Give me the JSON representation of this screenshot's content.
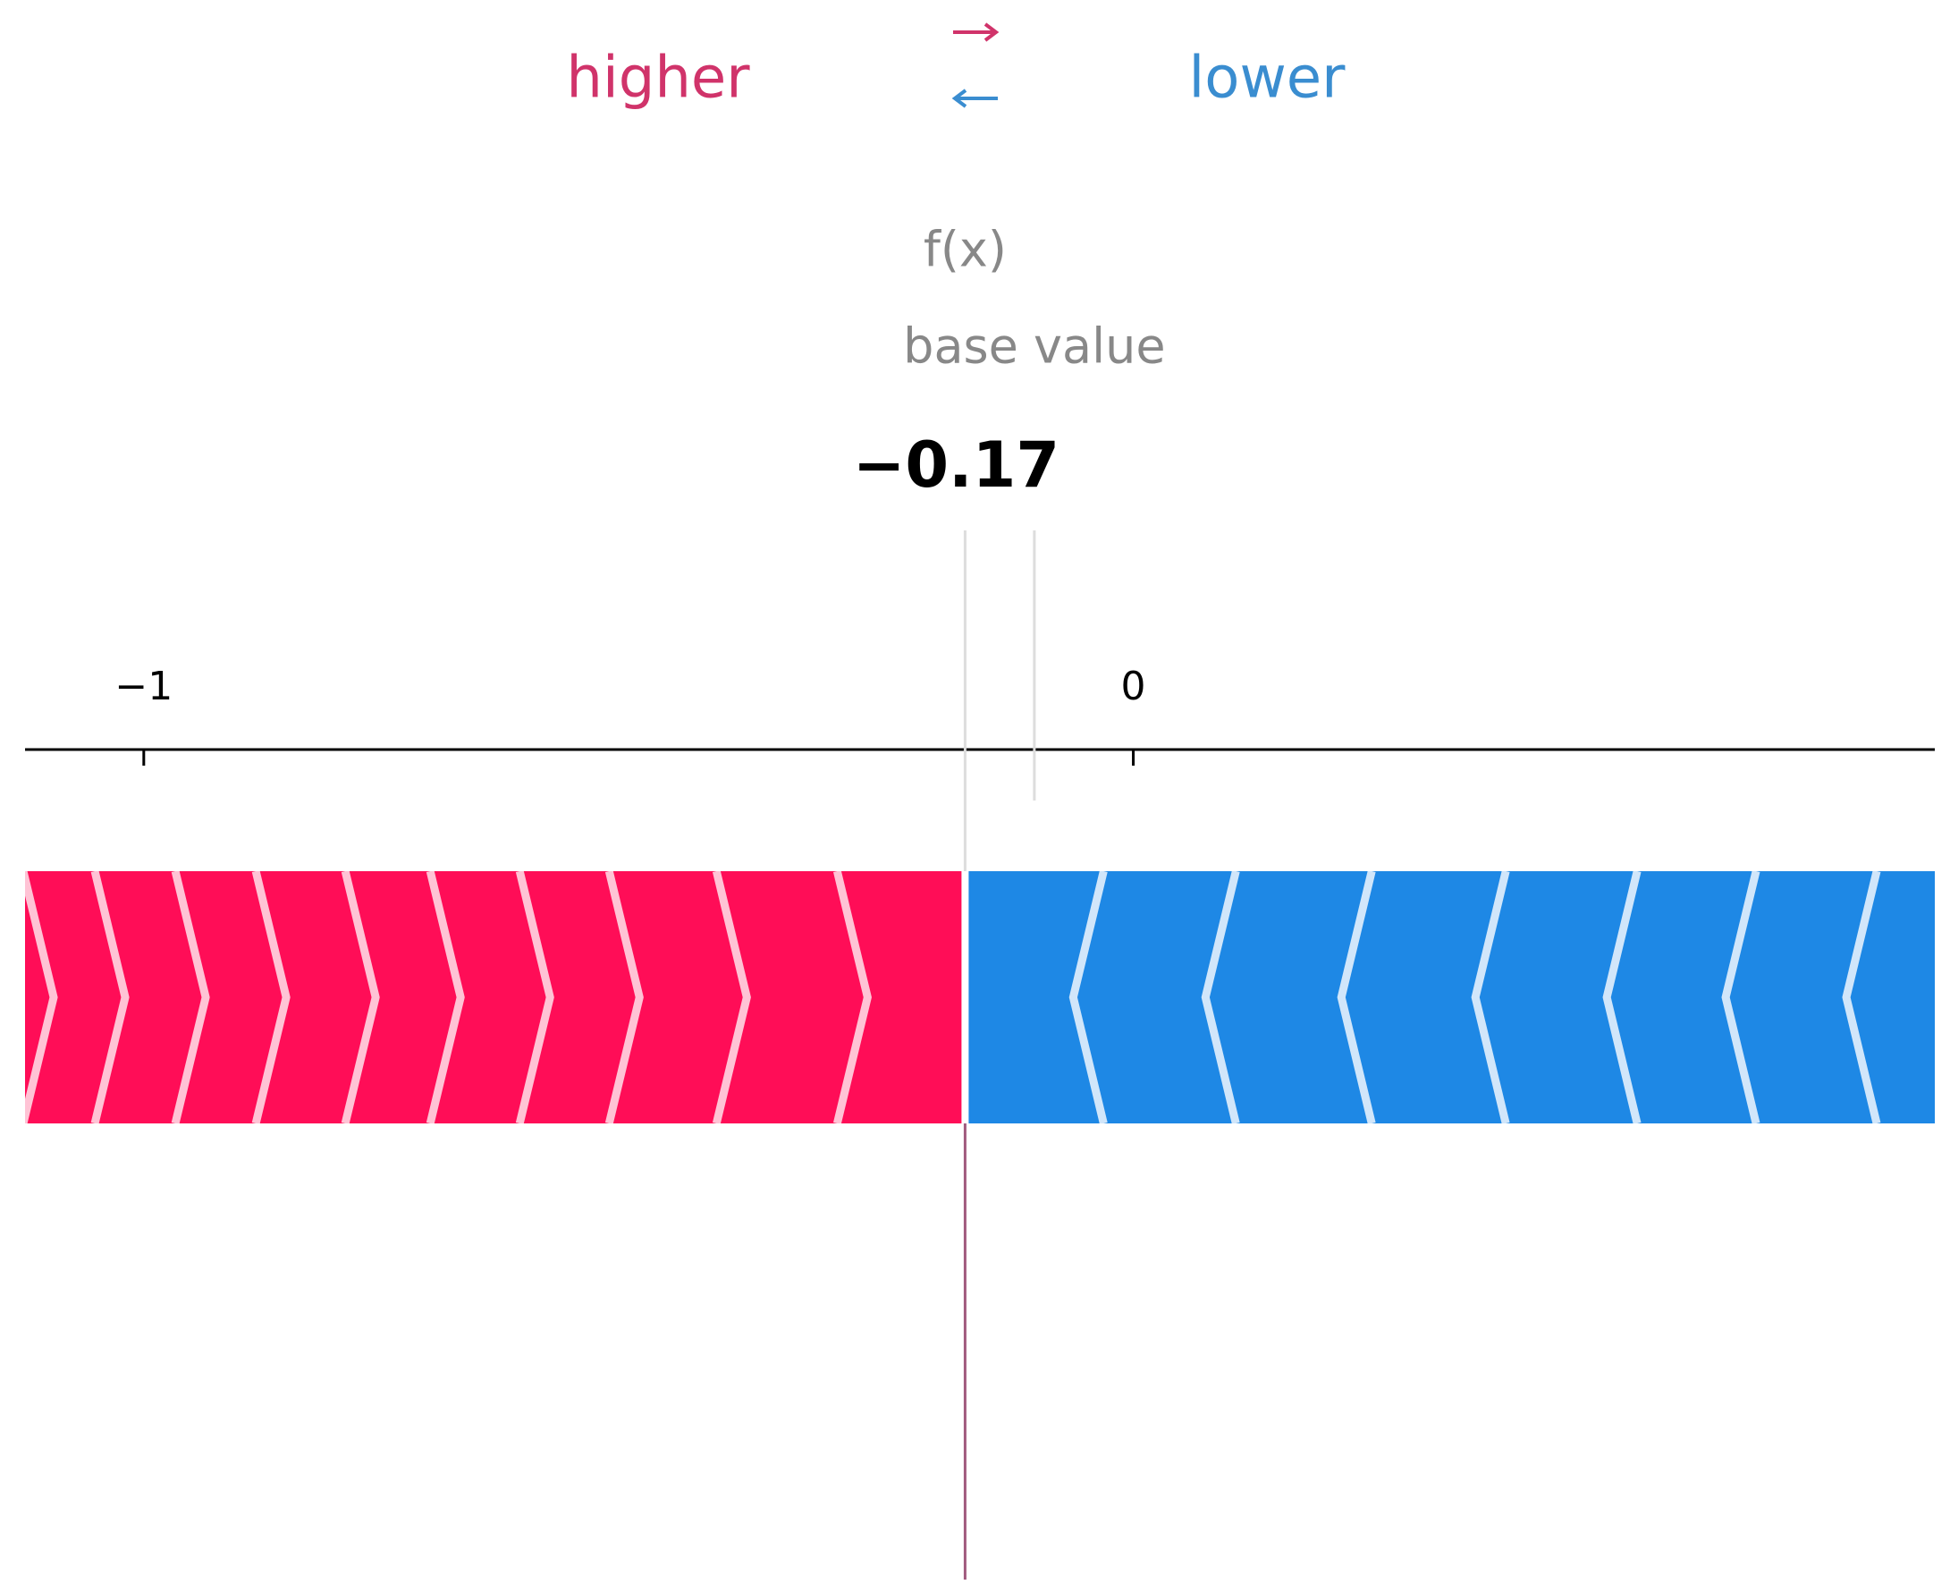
{
  "chart_data": {
    "type": "force",
    "higher_label": "higher",
    "lower_label": "lower",
    "output_label": "f(x)",
    "base_label": "base value",
    "output_value": -0.17,
    "value_labels": {
      "output_value": "−0.17"
    },
    "base_value": -0.1,
    "higher_color": "#ff0d57",
    "lower_color": "#1e88e5",
    "xlim": [
      -1.12,
      0.81
    ],
    "xticks": [
      {
        "value": -1,
        "label": "−1"
      },
      0
    ]
  }
}
